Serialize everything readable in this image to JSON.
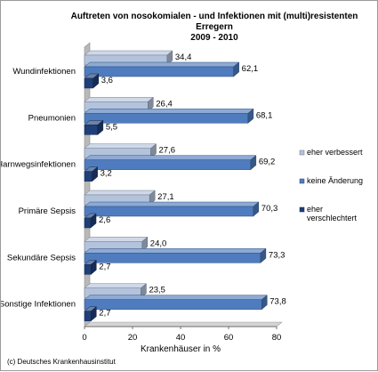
{
  "chart_data": {
    "type": "bar",
    "orientation": "horizontal",
    "title": [
      "Auftreten von nosokomialen - und Infektionen mit (multi)resistenten",
      "Erregern",
      "2009 - 2010"
    ],
    "categories": [
      "Wundinfektionen",
      "Pneumonien",
      "Harnwegsinfektionen",
      "Primäre Sepsis",
      "Sekundäre Sepsis",
      "Sonstige Infektionen"
    ],
    "series": [
      {
        "name": "eher verbessert",
        "color": "#b4c3dc",
        "values": [
          34.4,
          26.4,
          27.6,
          27.1,
          24.0,
          23.5
        ],
        "labels": [
          "34,4",
          "26,4",
          "27,6",
          "27,1",
          "24,0",
          "23,5"
        ]
      },
      {
        "name": "keine Änderung",
        "color": "#4f7cbf",
        "values": [
          62.1,
          68.1,
          69.2,
          70.3,
          73.3,
          73.8
        ],
        "labels": [
          "62,1",
          "68,1",
          "69,2",
          "70,3",
          "73,3",
          "73,8"
        ]
      },
      {
        "name": "eher verschlechtert",
        "color": "#1f3f78",
        "values": [
          3.6,
          5.5,
          3.2,
          2.6,
          2.7,
          2.7
        ],
        "labels": [
          "3,6",
          "5,5",
          "3,2",
          "2,6",
          "2,7",
          "2,7"
        ]
      }
    ],
    "legend_lines": [
      [
        "eher verbessert"
      ],
      [
        "keine Änderung"
      ],
      [
        "eher",
        "verschlechtert"
      ]
    ],
    "xlabel": "Krankenhäuser in %",
    "xlim": [
      0,
      80
    ],
    "xticks": [
      0,
      20,
      40,
      60,
      80
    ],
    "style": "3d",
    "legend_position": "right",
    "grid": false
  },
  "footer": {
    "copyright": "(c) Deutsches Krankenhausinstitut"
  }
}
